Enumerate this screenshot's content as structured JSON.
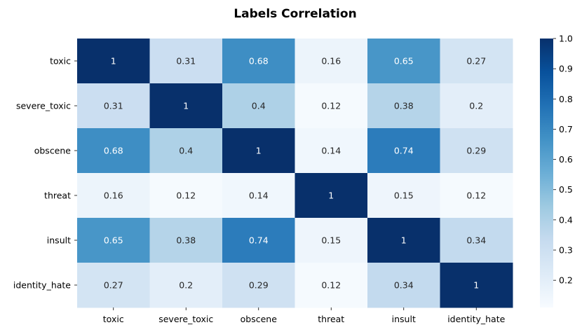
{
  "chart_data": {
    "type": "heatmap",
    "title": "Labels Correlation",
    "xlabel": "",
    "ylabel": "",
    "x_categories": [
      "toxic",
      "severe_toxic",
      "obscene",
      "threat",
      "insult",
      "identity_hate"
    ],
    "y_categories": [
      "toxic",
      "severe_toxic",
      "obscene",
      "threat",
      "insult",
      "identity_hate"
    ],
    "values": [
      [
        1,
        0.31,
        0.68,
        0.16,
        0.65,
        0.27
      ],
      [
        0.31,
        1,
        0.4,
        0.12,
        0.38,
        0.2
      ],
      [
        0.68,
        0.4,
        1,
        0.14,
        0.74,
        0.29
      ],
      [
        0.16,
        0.12,
        0.14,
        1,
        0.15,
        0.12
      ],
      [
        0.65,
        0.38,
        0.74,
        0.15,
        1,
        0.34
      ],
      [
        0.27,
        0.2,
        0.29,
        0.12,
        0.34,
        1
      ]
    ],
    "annotations": true,
    "colormap": "Blues",
    "vmin": 0.11,
    "vmax": 1.0,
    "colorbar": {
      "ticks": [
        0.2,
        0.3,
        0.4,
        0.5,
        0.6,
        0.7,
        0.8,
        0.9,
        1.0
      ],
      "tick_labels": [
        "0.2",
        "0.3",
        "0.4",
        "0.5",
        "0.6",
        "0.7",
        "0.8",
        "0.9",
        "1.0"
      ],
      "placement": "right"
    },
    "grid": false
  }
}
